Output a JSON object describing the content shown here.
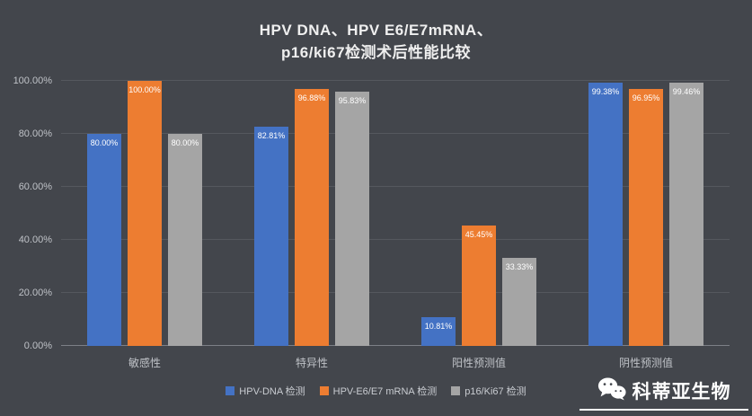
{
  "chart_data": {
    "type": "bar",
    "title": "HPV DNA、HPV E6/E7mRNA、\np16/ki67检测术后性能比较",
    "categories": [
      "敏感性",
      "特异性",
      "阳性预测值",
      "阴性预测值"
    ],
    "series": [
      {
        "name": "HPV-DNA 检测",
        "color": "#4472C4",
        "values": [
          80.0,
          82.81,
          10.81,
          99.38
        ],
        "labels": [
          "80.00%",
          "82.81%",
          "10.81%",
          "99.38%"
        ]
      },
      {
        "name": "HPV-E6/E7 mRNA 检测",
        "color": "#ED7D31",
        "values": [
          100.0,
          96.88,
          45.45,
          96.95
        ],
        "labels": [
          "100.00%",
          "96.88%",
          "45.45%",
          "96.95%"
        ]
      },
      {
        "name": "p16/Ki67 检测",
        "color": "#A5A5A5",
        "values": [
          80.0,
          95.83,
          33.33,
          99.46
        ],
        "labels": [
          "80.00%",
          "95.83%",
          "33.33%",
          "99.46%"
        ]
      }
    ],
    "ylim": [
      0,
      100
    ],
    "yticks": [
      "0.00%",
      "20.00%",
      "40.00%",
      "60.00%",
      "80.00%",
      "100.00%"
    ],
    "grid": true,
    "legend_position": "bottom"
  },
  "watermark": {
    "text": "科蒂亚生物"
  },
  "colors": {
    "background": "#43464C",
    "grid": "#55585E",
    "axis_text": "#BFC2C7",
    "title": "#EFEFEF"
  }
}
